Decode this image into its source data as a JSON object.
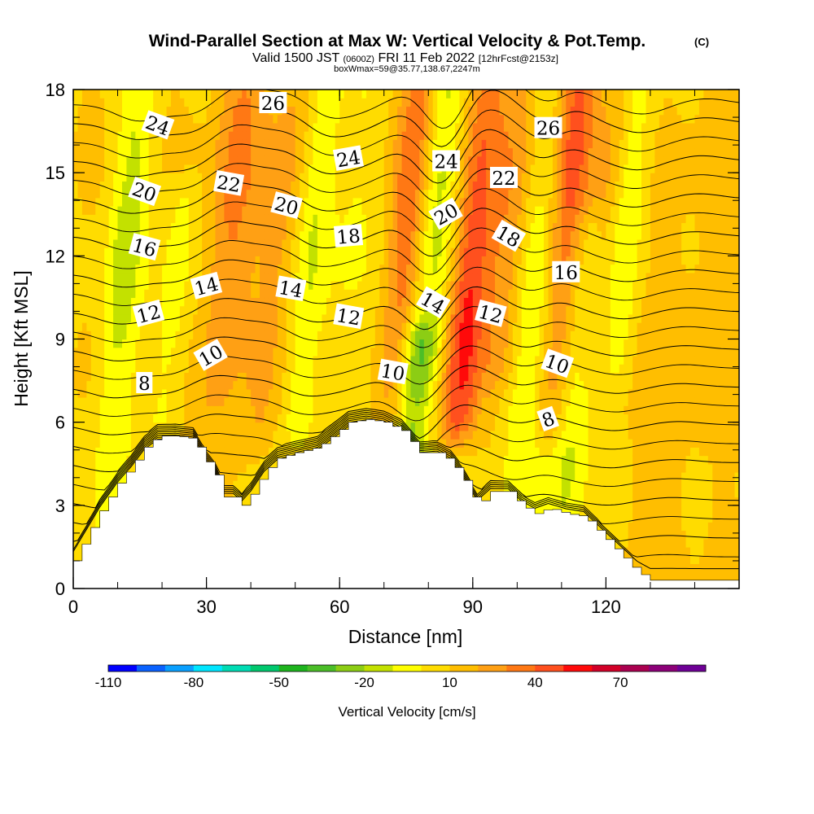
{
  "title": "Wind-Parallel Section at Max W: Vertical Velocity & Pot.Temp.",
  "copyright": "(C)",
  "subtitle": {
    "valid": "Valid 1500 JST",
    "utc": "(0600Z)",
    "date": "FRI 11 Feb 2022",
    "forecast": "[12hrFcst@2153z]"
  },
  "box_info": "boxWmax=59@35.77,138.67,2247m",
  "colorbar": {
    "title": "Vertical Velocity [cm/s]",
    "labels": [
      "-110",
      "-80",
      "-50",
      "-20",
      "10",
      "40",
      "70"
    ],
    "colors": [
      "#0000ff",
      "#0a62ff",
      "#0aa0ff",
      "#00e6ff",
      "#00dcb4",
      "#00c86e",
      "#1eb41e",
      "#4bbe28",
      "#8ccd14",
      "#c3e100",
      "#ffff00",
      "#ffdc00",
      "#ffbe00",
      "#ffa014",
      "#ff7814",
      "#ff501e",
      "#ff0a0a",
      "#d20028",
      "#aa0050",
      "#8c0078",
      "#6e0096"
    ]
  },
  "chart_data": {
    "type": "heatmap",
    "title": "Wind-Parallel Section at Max W: Vertical Velocity & Pot.Temp.",
    "xlabel": "Distance [nm]",
    "ylabel": "Height [Kft MSL]",
    "xlim": [
      0,
      150
    ],
    "ylim": [
      0,
      18
    ],
    "x_ticks": [
      "0",
      "30",
      "60",
      "90",
      "120"
    ],
    "y_ticks": [
      "0",
      "3",
      "6",
      "9",
      "12",
      "15",
      "18"
    ],
    "color_variable": "Vertical Velocity [cm/s]",
    "color_range": [
      -110,
      100
    ],
    "contour_variable": "Potential Temperature",
    "contour_values": [
      2,
      4,
      6,
      8,
      10,
      12,
      14,
      16,
      18,
      20,
      22,
      24,
      26
    ],
    "contour_labels": [
      {
        "text": "24",
        "x": 19,
        "y": 16.7,
        "rot": 20
      },
      {
        "text": "20",
        "x": 16,
        "y": 14.3,
        "rot": 20
      },
      {
        "text": "16",
        "x": 16,
        "y": 12.3,
        "rot": 15
      },
      {
        "text": "12",
        "x": 17,
        "y": 9.9,
        "rot": -15
      },
      {
        "text": "8",
        "x": 16,
        "y": 7.4,
        "rot": 0
      },
      {
        "text": "10",
        "x": 31,
        "y": 8.4,
        "rot": -30
      },
      {
        "text": "14",
        "x": 30,
        "y": 10.9,
        "rot": -15
      },
      {
        "text": "22",
        "x": 35,
        "y": 14.6,
        "rot": 10
      },
      {
        "text": "26",
        "x": 45,
        "y": 17.5,
        "rot": 0
      },
      {
        "text": "20",
        "x": 48,
        "y": 13.8,
        "rot": 15
      },
      {
        "text": "14",
        "x": 49,
        "y": 10.8,
        "rot": 10
      },
      {
        "text": "24",
        "x": 62,
        "y": 15.5,
        "rot": -10
      },
      {
        "text": "18",
        "x": 62,
        "y": 12.7,
        "rot": -5
      },
      {
        "text": "12",
        "x": 62,
        "y": 9.8,
        "rot": 10
      },
      {
        "text": "10",
        "x": 72,
        "y": 7.8,
        "rot": 10
      },
      {
        "text": "24",
        "x": 84,
        "y": 15.4,
        "rot": 0
      },
      {
        "text": "20",
        "x": 84,
        "y": 13.5,
        "rot": -30
      },
      {
        "text": "14",
        "x": 81,
        "y": 10.3,
        "rot": 30
      },
      {
        "text": "12",
        "x": 94,
        "y": 9.9,
        "rot": 15
      },
      {
        "text": "22",
        "x": 97,
        "y": 14.8,
        "rot": 0
      },
      {
        "text": "18",
        "x": 98,
        "y": 12.7,
        "rot": 30
      },
      {
        "text": "26",
        "x": 107,
        "y": 16.6,
        "rot": 0
      },
      {
        "text": "16",
        "x": 111,
        "y": 11.4,
        "rot": 0
      },
      {
        "text": "10",
        "x": 109,
        "y": 8.1,
        "rot": 20
      },
      {
        "text": "8",
        "x": 107,
        "y": 6.1,
        "rot": -20
      }
    ],
    "terrain_kft": [
      [
        0,
        1.0
      ],
      [
        3,
        1.9
      ],
      [
        6,
        2.8
      ],
      [
        10,
        3.8
      ],
      [
        13,
        4.4
      ],
      [
        16,
        5.1
      ],
      [
        19,
        5.5
      ],
      [
        23,
        5.5
      ],
      [
        27,
        5.4
      ],
      [
        29,
        4.8
      ],
      [
        32,
        4.1
      ],
      [
        34,
        3.3
      ],
      [
        36,
        3.3
      ],
      [
        38,
        3.0
      ],
      [
        40,
        3.4
      ],
      [
        43,
        4.2
      ],
      [
        46,
        4.7
      ],
      [
        50,
        4.9
      ],
      [
        55,
        5.1
      ],
      [
        59,
        5.6
      ],
      [
        62,
        6.0
      ],
      [
        66,
        6.1
      ],
      [
        70,
        6.0
      ],
      [
        74,
        5.7
      ],
      [
        78,
        4.9
      ],
      [
        82,
        4.9
      ],
      [
        85,
        4.6
      ],
      [
        88,
        3.9
      ],
      [
        91,
        3.0
      ],
      [
        94,
        3.5
      ],
      [
        98,
        3.5
      ],
      [
        101,
        3.0
      ],
      [
        104,
        2.7
      ],
      [
        107,
        2.9
      ],
      [
        111,
        2.7
      ],
      [
        115,
        2.6
      ],
      [
        118,
        2.1
      ],
      [
        121,
        1.6
      ],
      [
        124,
        1.1
      ],
      [
        127,
        0.6
      ],
      [
        130,
        0.3
      ],
      [
        133,
        0.3
      ],
      [
        150,
        0.3
      ]
    ],
    "updrafts": [
      {
        "x": 10,
        "zmin": 0,
        "zmax": 18,
        "wmin": 3,
        "w": -22,
        "peak": 12
      },
      {
        "x": 22,
        "zmin": 6,
        "zmax": 14,
        "wmin": 3,
        "w": -14,
        "peak": 10
      },
      {
        "x": 33,
        "zmin": 3,
        "zmax": 18,
        "wmin": 4,
        "w": 25,
        "peak": 14
      },
      {
        "x": 45,
        "zmin": 6,
        "zmax": 18,
        "wmin": 3.5,
        "w": 18,
        "peak": 14
      },
      {
        "x": 52,
        "zmin": 6,
        "zmax": 18,
        "wmin": 3,
        "w": -20,
        "peak": 14
      },
      {
        "x": 60,
        "zmin": 5,
        "zmax": 18,
        "wmin": 3.5,
        "w": -8,
        "peak": 12
      },
      {
        "x": 73,
        "zmin": 6,
        "zmax": 18,
        "wmin": 3,
        "w": 30,
        "peak": 14
      },
      {
        "x": 78,
        "zmin": 4,
        "zmax": 9,
        "wmin": 3,
        "w": -35,
        "peak": 6
      },
      {
        "x": 79,
        "zmin": 8,
        "zmax": 18,
        "wmin": 3,
        "w": -22,
        "peak": 14
      },
      {
        "x": 88,
        "zmin": 6,
        "zmax": 18,
        "wmin": 3,
        "w": 45,
        "peak": 9
      },
      {
        "x": 96,
        "zmin": 8,
        "zmax": 18,
        "wmin": 3.5,
        "w": 20,
        "peak": 14
      },
      {
        "x": 103,
        "zmin": 3,
        "zmax": 18,
        "wmin": 3,
        "w": -18,
        "peak": 9
      },
      {
        "x": 109,
        "zmin": 6,
        "zmax": 18,
        "wmin": 3,
        "w": 35,
        "peak": 16
      },
      {
        "x": 114,
        "zmin": 3,
        "zmax": 13,
        "wmin": 3,
        "w": -22,
        "peak": 6
      },
      {
        "x": 118,
        "zmin": 8,
        "zmax": 18,
        "wmin": 3,
        "w": 20,
        "peak": 14
      },
      {
        "x": 122,
        "zmin": 8,
        "zmax": 18,
        "wmin": 3,
        "w": -22,
        "peak": 14
      },
      {
        "x": 138,
        "zmin": 0,
        "zmax": 18,
        "wmin": 8,
        "w": 8,
        "peak": 8
      }
    ]
  }
}
